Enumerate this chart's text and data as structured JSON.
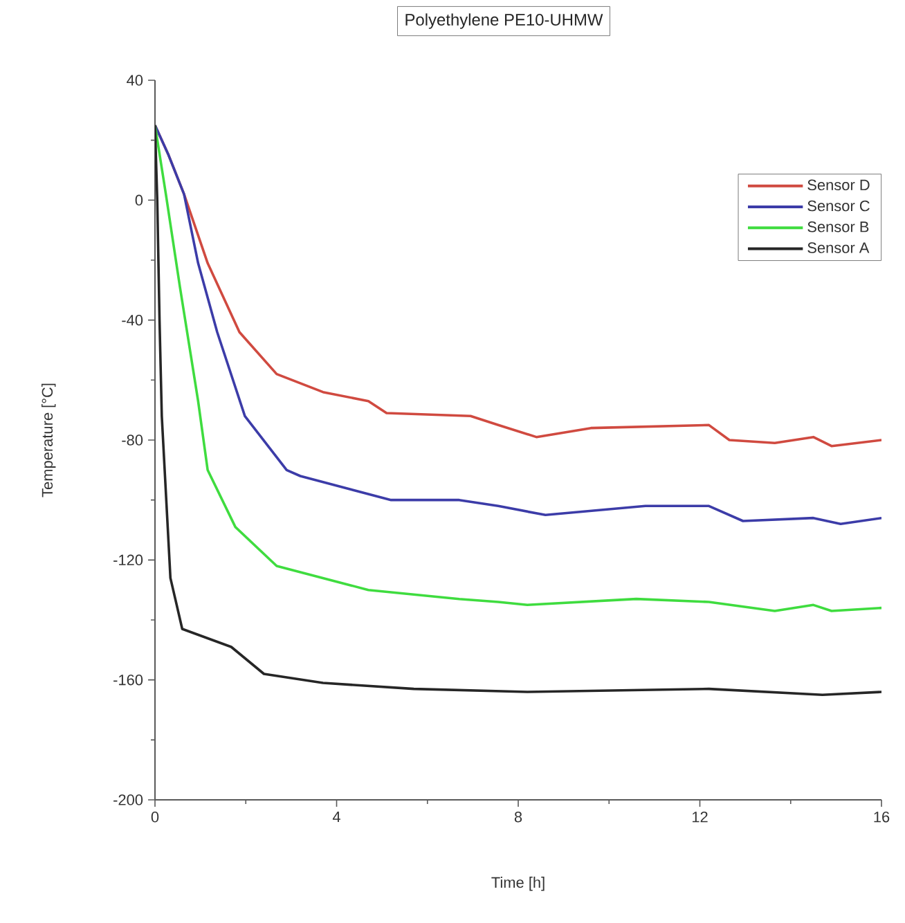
{
  "chart_data": {
    "type": "line",
    "title": "Polyethylene PE10-UHMW",
    "xlabel": "Time [h]",
    "ylabel": "Temperature [°C]",
    "xlim": [
      0,
      16
    ],
    "ylim": [
      -200,
      40
    ],
    "xticks": [
      0,
      4,
      8,
      12,
      16
    ],
    "yticks": [
      -200,
      -160,
      -120,
      -80,
      -40,
      0,
      40
    ],
    "legend": "top right",
    "grid": false,
    "series": [
      {
        "name": "Sensor D",
        "color": "#d04a40",
        "x": [
          0,
          0.3,
          0.64,
          1.16,
          1.86,
          2.68,
          3.7,
          4.7,
          5.1,
          6.95,
          7.56,
          8.4,
          9.6,
          12.2,
          12.65,
          13.65,
          14.5,
          14.9,
          16
        ],
        "values": [
          25,
          15,
          2,
          -21,
          -44,
          -58,
          -64,
          -67,
          -71,
          -72,
          -75,
          -79,
          -76,
          -75,
          -80,
          -81,
          -79,
          -82,
          -80
        ]
      },
      {
        "name": "Sensor C",
        "color": "#3c3ca8",
        "x": [
          0,
          0.3,
          0.64,
          0.95,
          1.37,
          1.98,
          2.9,
          3.2,
          5.2,
          6.7,
          7.56,
          8.6,
          10.8,
          12.2,
          12.95,
          14.5,
          15.1,
          16
        ],
        "values": [
          25,
          15,
          2,
          -21,
          -44,
          -72,
          -90,
          -92,
          -100,
          -100,
          -102,
          -105,
          -102,
          -102,
          -107,
          -106,
          -108,
          -106
        ]
      },
      {
        "name": "Sensor B",
        "color": "#3fdc3f",
        "x": [
          0,
          0.24,
          0.55,
          0.95,
          1.16,
          1.77,
          2.68,
          4.7,
          6.7,
          7.56,
          8.2,
          10.6,
          12.2,
          13.65,
          14.5,
          14.9,
          16
        ],
        "values": [
          25,
          2,
          -29,
          -67,
          -90,
          -109,
          -122,
          -130,
          -133,
          -134,
          -135,
          -133,
          -134,
          -137,
          -135,
          -137,
          -136
        ]
      },
      {
        "name": "Sensor A",
        "color": "#262626",
        "x": [
          0,
          0.05,
          0.1,
          0.15,
          0.34,
          0.6,
          1.68,
          2.4,
          3.7,
          5.7,
          8.2,
          12.2,
          14.7,
          16
        ],
        "values": [
          25,
          0,
          -40,
          -72,
          -126,
          -143,
          -149,
          -158,
          -161,
          -163,
          -164,
          -163,
          -165,
          -164
        ]
      }
    ]
  }
}
